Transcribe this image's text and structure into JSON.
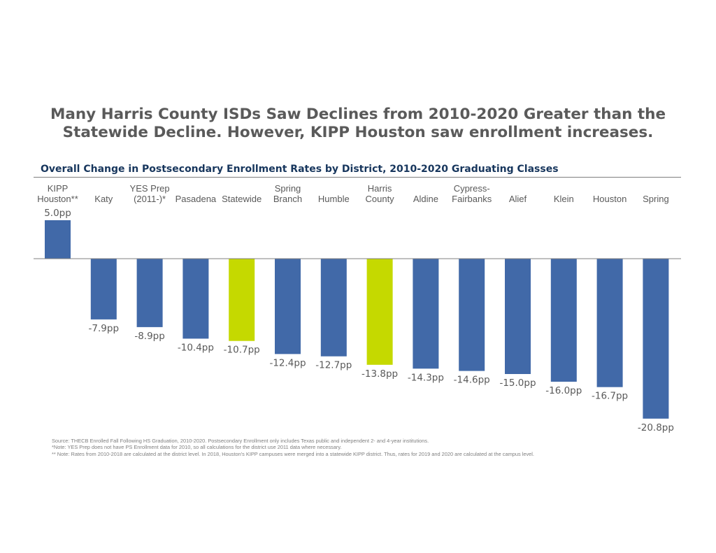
{
  "title_lines": [
    "Many Harris County ISDs Saw Declines from 2010-2020 Greater than the",
    "Statewide Decline. However, KIPP Houston saw enrollment increases."
  ],
  "subtitle": "Overall Change in Postsecondary Enrollment Rates by District, 2010-2020 Graduating Classes",
  "notes": [
    "Source: THECB Enrolled Fall Following HS Graduation, 2010-2020. Postsecondary Enrollment only includes Texas public and independent 2- and 4-year institutions.",
    "*Note: YES Prep does not have PS Enrollment data for 2010, so all calculations for the district use 2011 data where necessary.",
    "** Note: Rates from 2010-2018 are calculated at the district level. In 2018, Houston's KIPP campuses were merged into a statewide KIPP district. Thus, rates for 2019 and 2020 are calculated at the campus level."
  ],
  "colors": {
    "default_bar": "#4169a8",
    "highlight_bar": "#c5d900",
    "label": "#595959",
    "axis": "#7f7f7f"
  },
  "chart_data": {
    "type": "bar",
    "title": "Overall Change in Postsecondary Enrollment Rates by District, 2010-2020 Graduating Classes",
    "xlabel": "",
    "ylabel": "",
    "value_suffix": "pp",
    "ylim": [
      -22,
      5
    ],
    "grid": false,
    "categories": [
      [
        "KIPP",
        "Houston**"
      ],
      [
        "Katy"
      ],
      [
        "YES Prep",
        "(2011-)*"
      ],
      [
        "Pasadena"
      ],
      [
        "Statewide"
      ],
      [
        "Spring",
        "Branch"
      ],
      [
        "Humble"
      ],
      [
        "Harris",
        "County"
      ],
      [
        "Aldine"
      ],
      [
        "Cypress-",
        "Fairbanks"
      ],
      [
        "Alief"
      ],
      [
        "Klein"
      ],
      [
        "Houston"
      ],
      [
        "Spring"
      ]
    ],
    "values": [
      5.0,
      -7.9,
      -8.9,
      -10.4,
      -10.7,
      -12.4,
      -12.7,
      -13.8,
      -14.3,
      -14.6,
      -15.0,
      -16.0,
      -16.7,
      -20.8
    ],
    "highlight": [
      false,
      false,
      false,
      false,
      true,
      false,
      false,
      true,
      false,
      false,
      false,
      false,
      false,
      false
    ]
  }
}
